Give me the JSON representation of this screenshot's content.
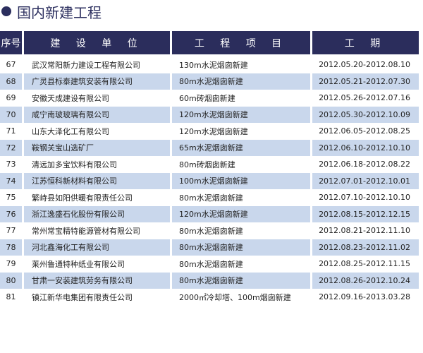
{
  "title": "国内新建工程",
  "headers": [
    "序号",
    "建 设 单 位",
    "工 程 项 目",
    "工  期"
  ],
  "rows": [
    [
      "67",
      "武汉常阳新力建设工程有限公司",
      "130m水泥烟囱新建",
      "2012.05.20-2012.08.10"
    ],
    [
      "68",
      "广灵县标泰建筑安装有限公司",
      "80m水泥烟囱新建",
      "2012.05.21-2012.07.30"
    ],
    [
      "69",
      "安徽天成建设有限公司",
      "60m砖烟囱新建",
      "2012.05.26-2012.07.16"
    ],
    [
      "70",
      "咸宁南玻玻璃有限公司",
      "120m水泥烟囱新建",
      "2012.05.30-2012.10.09"
    ],
    [
      "71",
      "山东大泽化工有限公司",
      "120m水泥烟囱新建",
      "2012.06.05-2012.08.25"
    ],
    [
      "72",
      "鞍钢关宝山选矿厂",
      "65m水泥烟囱新建",
      "2012.06.10-2012.10.10"
    ],
    [
      "73",
      "清远加多宝饮料有限公司",
      "80m砖烟囱新建",
      "2012.06.18-2012.08.22"
    ],
    [
      "74",
      "江苏恒科新材料有限公司",
      "100m水泥烟囱新建",
      "2012.07.01-2012.10.01"
    ],
    [
      "75",
      "繁峙县如阳供暖有限责任公司",
      "80m水泥烟囱新建",
      "2012.07.10-2012.10.10"
    ],
    [
      "76",
      "浙江逸盛石化股份有限公司",
      "120m水泥烟囱新建",
      "2012.08.15-2012.12.15"
    ],
    [
      "77",
      "常州常宝精特能源管材有限公司",
      "80m水泥烟囱新建",
      "2012.08.21-2012.11.10"
    ],
    [
      "78",
      "河北鑫海化工有限公司",
      "80m水泥烟囱新建",
      "2012.08.23-2012.11.02"
    ],
    [
      "79",
      "莱州鲁通特种纸业有限公司",
      "80m水泥烟囱新建",
      "2012.08.25-2012.11.15"
    ],
    [
      "80",
      "甘肃一安装建筑劳务有限公司",
      "80m水泥烟囱新建",
      "2012.08.26-2012.10.24"
    ],
    [
      "81",
      "镇江新华电集团有限责任公司",
      "2000㎡冷却塔、100m烟囱新建",
      "2012.09.16-2013.03.28"
    ]
  ],
  "colors": {
    "header": "#2b2d5c",
    "stripe": "#c9d7ec"
  }
}
